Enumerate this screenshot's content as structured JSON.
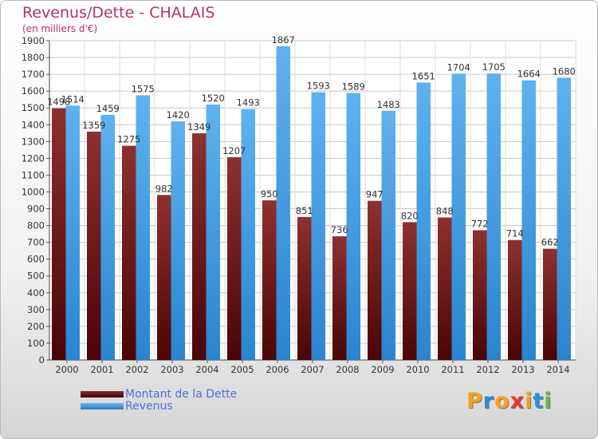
{
  "title": "Revenus/Dette - CHALAIS",
  "subtitle": "(en milliers d'€)",
  "colors": {
    "title": "#b1336c",
    "dette": "#7a1f1f",
    "revenus": "#3a9be6"
  },
  "legend": {
    "dette_label": "Montant de la Dette",
    "revenus_label": "Revenus"
  },
  "logo": {
    "text": "Proxiti"
  },
  "chart_data": {
    "type": "bar",
    "title": "Revenus/Dette - CHALAIS",
    "subtitle": "(en milliers d'€)",
    "categories": [
      "2000",
      "2001",
      "2002",
      "2003",
      "2004",
      "2005",
      "2006",
      "2007",
      "2008",
      "2009",
      "2010",
      "2011",
      "2012",
      "2013",
      "2014"
    ],
    "series": [
      {
        "name": "Montant de la Dette",
        "values": [
          1498,
          1359,
          1275,
          982,
          1349,
          1207,
          950,
          851,
          736,
          947,
          820,
          848,
          772,
          714,
          662
        ]
      },
      {
        "name": "Revenus",
        "values": [
          1514,
          1459,
          1575,
          1420,
          1520,
          1493,
          1867,
          1593,
          1589,
          1483,
          1651,
          1704,
          1705,
          1664,
          1680
        ]
      }
    ],
    "ylim": [
      0,
      1900
    ],
    "ytick_step": 100,
    "grid": true,
    "legend_position": "bottom-left"
  }
}
